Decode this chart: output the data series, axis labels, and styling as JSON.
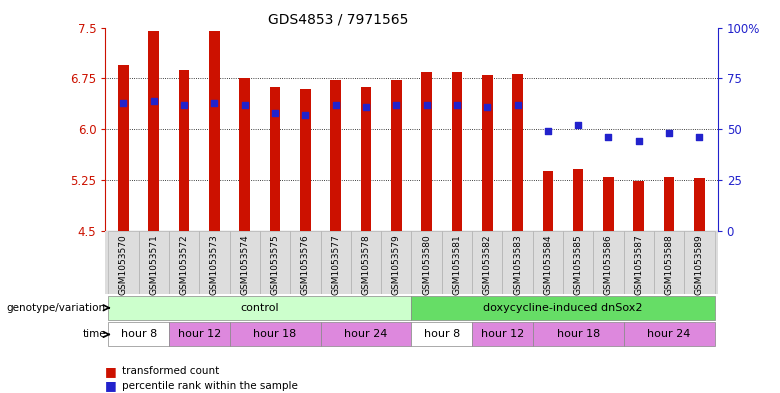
{
  "title": "GDS4853 / 7971565",
  "samples": [
    "GSM1053570",
    "GSM1053571",
    "GSM1053572",
    "GSM1053573",
    "GSM1053574",
    "GSM1053575",
    "GSM1053576",
    "GSM1053577",
    "GSM1053578",
    "GSM1053579",
    "GSM1053580",
    "GSM1053581",
    "GSM1053582",
    "GSM1053583",
    "GSM1053584",
    "GSM1053585",
    "GSM1053586",
    "GSM1053587",
    "GSM1053588",
    "GSM1053589"
  ],
  "transformed_count": [
    6.95,
    7.45,
    6.88,
    7.45,
    6.75,
    6.62,
    6.6,
    6.72,
    6.62,
    6.72,
    6.85,
    6.85,
    6.8,
    6.82,
    5.38,
    5.42,
    5.3,
    5.24,
    5.3,
    5.28
  ],
  "percentile_rank": [
    63,
    64,
    62,
    63,
    62,
    58,
    57,
    62,
    61,
    62,
    62,
    62,
    61,
    62,
    49,
    52,
    46,
    44,
    48,
    46
  ],
  "ylim_left": [
    4.5,
    7.5
  ],
  "ylim_right": [
    0,
    100
  ],
  "yticks_left": [
    4.5,
    5.25,
    6.0,
    6.75,
    7.5
  ],
  "yticks_right": [
    0,
    25,
    50,
    75,
    100
  ],
  "bar_color": "#cc1100",
  "dot_color": "#2222cc",
  "bar_width": 0.35,
  "genotype_groups": [
    {
      "label": "control",
      "start": 0,
      "end": 9,
      "color": "#ccffcc"
    },
    {
      "label": "doxycycline-induced dnSox2",
      "start": 10,
      "end": 19,
      "color": "#66dd66"
    }
  ],
  "time_groups": [
    {
      "label": "hour 8",
      "start": 0,
      "end": 1,
      "color": "#ffffff"
    },
    {
      "label": "hour 12",
      "start": 2,
      "end": 3,
      "color": "#dd88dd"
    },
    {
      "label": "hour 18",
      "start": 4,
      "end": 6,
      "color": "#dd88dd"
    },
    {
      "label": "hour 24",
      "start": 7,
      "end": 9,
      "color": "#dd88dd"
    },
    {
      "label": "hour 8",
      "start": 10,
      "end": 11,
      "color": "#ffffff"
    },
    {
      "label": "hour 12",
      "start": 12,
      "end": 13,
      "color": "#dd88dd"
    },
    {
      "label": "hour 18",
      "start": 14,
      "end": 16,
      "color": "#dd88dd"
    },
    {
      "label": "hour 24",
      "start": 17,
      "end": 19,
      "color": "#dd88dd"
    }
  ],
  "legend_items": [
    {
      "label": "transformed count",
      "color": "#cc1100"
    },
    {
      "label": "percentile rank within the sample",
      "color": "#2222cc"
    }
  ],
  "left_axis_color": "#cc1100",
  "right_axis_color": "#2222cc",
  "background_color": "#ffffff",
  "tick_label_bg": "#dddddd"
}
